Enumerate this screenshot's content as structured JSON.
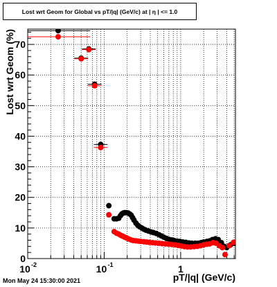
{
  "chart_data": {
    "type": "scatter",
    "title": "Lost wrt Geom for Global vs pT/|q| (GeV/c) at |  η | <= 1.0",
    "xlabel": "pT/|q| (GeV/c)",
    "ylabel": "Lost wrt Geom (%)",
    "xscale": "log",
    "xlim": [
      0.01,
      5.2
    ],
    "ylim": [
      0,
      75
    ],
    "grid": true,
    "x_tick_labels": [
      "10",
      "10",
      "1"
    ],
    "x_tick_exponents": [
      "-2",
      "-1",
      ""
    ],
    "x_tick_values": [
      0.01,
      0.1,
      1
    ],
    "y_tick_labels": [
      "0",
      "10",
      "20",
      "30",
      "40",
      "50",
      "60",
      "70"
    ],
    "y_tick_values": [
      0,
      10,
      20,
      30,
      40,
      50,
      60,
      70
    ],
    "series": [
      {
        "color": "#000000",
        "points": [
          [
            0.025,
            74.5
          ],
          [
            0.05,
            65.5
          ],
          [
            0.063,
            68.5
          ],
          [
            0.075,
            57.0
          ],
          [
            0.09,
            37.3
          ],
          [
            0.115,
            17.3
          ],
          [
            0.135,
            13.0
          ],
          [
            0.145,
            13.0
          ],
          [
            0.155,
            13.2
          ],
          [
            0.163,
            14.0
          ],
          [
            0.17,
            14.6
          ],
          [
            0.178,
            14.9
          ],
          [
            0.186,
            15.0
          ],
          [
            0.195,
            15.0
          ],
          [
            0.205,
            14.9
          ],
          [
            0.215,
            14.6
          ],
          [
            0.225,
            14.2
          ],
          [
            0.235,
            13.4
          ],
          [
            0.245,
            12.6
          ],
          [
            0.26,
            11.6
          ],
          [
            0.275,
            10.9
          ],
          [
            0.29,
            10.4
          ],
          [
            0.31,
            10.0
          ],
          [
            0.33,
            9.6
          ],
          [
            0.35,
            9.3
          ],
          [
            0.38,
            9.0
          ],
          [
            0.41,
            8.7
          ],
          [
            0.44,
            8.5
          ],
          [
            0.48,
            8.2
          ],
          [
            0.52,
            7.8
          ],
          [
            0.56,
            7.4
          ],
          [
            0.6,
            7.0
          ],
          [
            0.65,
            6.6
          ],
          [
            0.7,
            6.3
          ],
          [
            0.76,
            6.1
          ],
          [
            0.82,
            5.9
          ],
          [
            0.9,
            5.7
          ],
          [
            0.98,
            5.6
          ],
          [
            1.07,
            5.4
          ],
          [
            1.17,
            5.3
          ],
          [
            1.28,
            5.1
          ],
          [
            1.4,
            5.0
          ],
          [
            1.55,
            5.0
          ],
          [
            1.7,
            5.0
          ],
          [
            1.85,
            5.2
          ],
          [
            2.0,
            5.4
          ],
          [
            2.2,
            5.6
          ],
          [
            2.4,
            5.8
          ],
          [
            2.6,
            6.2
          ],
          [
            2.85,
            6.5
          ],
          [
            3.1,
            6.2
          ],
          [
            3.4,
            5.2
          ],
          [
            3.7,
            4.0
          ],
          [
            4.0,
            3.6
          ],
          [
            4.5,
            4.5
          ],
          [
            5.0,
            5.0
          ]
        ]
      },
      {
        "color": "#ff0000",
        "points": [
          [
            0.025,
            72.5
          ],
          [
            0.05,
            65.3
          ],
          [
            0.063,
            68.3
          ],
          [
            0.075,
            56.5
          ],
          [
            0.09,
            36.3
          ],
          [
            0.115,
            14.3
          ],
          [
            0.135,
            8.8
          ],
          [
            0.145,
            8.3
          ],
          [
            0.155,
            8.0
          ],
          [
            0.165,
            7.6
          ],
          [
            0.175,
            7.3
          ],
          [
            0.185,
            7.0
          ],
          [
            0.197,
            6.7
          ],
          [
            0.21,
            6.4
          ],
          [
            0.225,
            6.1
          ],
          [
            0.24,
            5.9
          ],
          [
            0.26,
            5.8
          ],
          [
            0.28,
            5.7
          ],
          [
            0.3,
            5.6
          ],
          [
            0.33,
            5.5
          ],
          [
            0.36,
            5.4
          ],
          [
            0.39,
            5.3
          ],
          [
            0.43,
            5.2
          ],
          [
            0.47,
            5.1
          ],
          [
            0.52,
            5.0
          ],
          [
            0.57,
            4.9
          ],
          [
            0.63,
            4.8
          ],
          [
            0.7,
            4.7
          ],
          [
            0.77,
            4.6
          ],
          [
            0.85,
            4.5
          ],
          [
            0.93,
            4.3
          ],
          [
            1.02,
            4.1
          ],
          [
            1.12,
            3.9
          ],
          [
            1.23,
            3.8
          ],
          [
            1.35,
            3.8
          ],
          [
            1.5,
            3.9
          ],
          [
            1.65,
            4.0
          ],
          [
            1.82,
            4.2
          ],
          [
            2.0,
            4.5
          ],
          [
            2.2,
            4.7
          ],
          [
            2.4,
            4.8
          ],
          [
            2.65,
            5.2
          ],
          [
            2.9,
            5.0
          ],
          [
            3.2,
            4.2
          ],
          [
            3.5,
            3.6
          ],
          [
            3.8,
            1.3
          ],
          [
            4.3,
            4.2
          ],
          [
            4.9,
            5.3
          ]
        ]
      }
    ]
  },
  "footer": {
    "timestamp": "Mon May 24 15:30:00 2021"
  }
}
